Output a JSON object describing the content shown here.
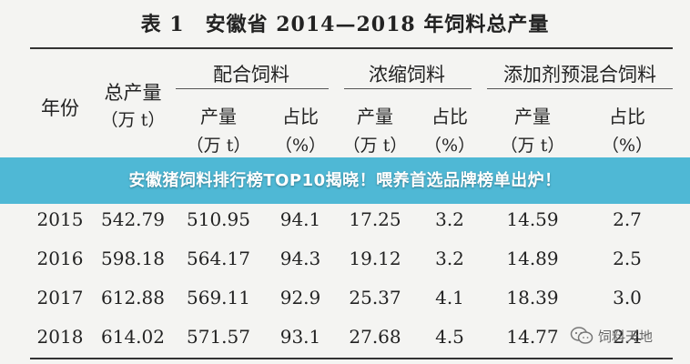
{
  "title": "表 1　安徽省 2014—2018 年饲料总产量",
  "headers": {
    "year": "年份",
    "total_line1": "总产量",
    "total_line2": "（万 t）",
    "group_compound": "配合饲料",
    "group_concentrate": "浓缩饲料",
    "group_premix": "添加剂预混合饲料",
    "output_line1": "产量",
    "output_line2": "（万 t）",
    "share_line1": "占比",
    "share_line2": "（%）"
  },
  "rows": [
    {
      "year": "2015",
      "total": "542.79",
      "c_out": "510.95",
      "c_pct": "94.1",
      "n_out": "17.25",
      "n_pct": "3.2",
      "p_out": "14.59",
      "p_pct": "2.7"
    },
    {
      "year": "2016",
      "total": "598.18",
      "c_out": "564.17",
      "c_pct": "94.3",
      "n_out": "19.12",
      "n_pct": "3.2",
      "p_out": "14.89",
      "p_pct": "2.5"
    },
    {
      "year": "2017",
      "total": "612.88",
      "c_out": "569.11",
      "c_pct": "92.9",
      "n_out": "25.37",
      "n_pct": "4.1",
      "p_out": "18.39",
      "p_pct": "3.0"
    },
    {
      "year": "2018",
      "total": "614.02",
      "c_out": "571.57",
      "c_pct": "93.1",
      "n_out": "27.68",
      "n_pct": "4.5",
      "p_out": "14.77",
      "p_pct": "2.4"
    }
  ],
  "banner": {
    "text": "安徽猪饲料排行榜TOP10揭晓！喂养首选品牌榜单出炉！",
    "color": "#40b2d2"
  },
  "watermark": {
    "text": "饲料天地",
    "icon": "wechat-logo-icon"
  }
}
